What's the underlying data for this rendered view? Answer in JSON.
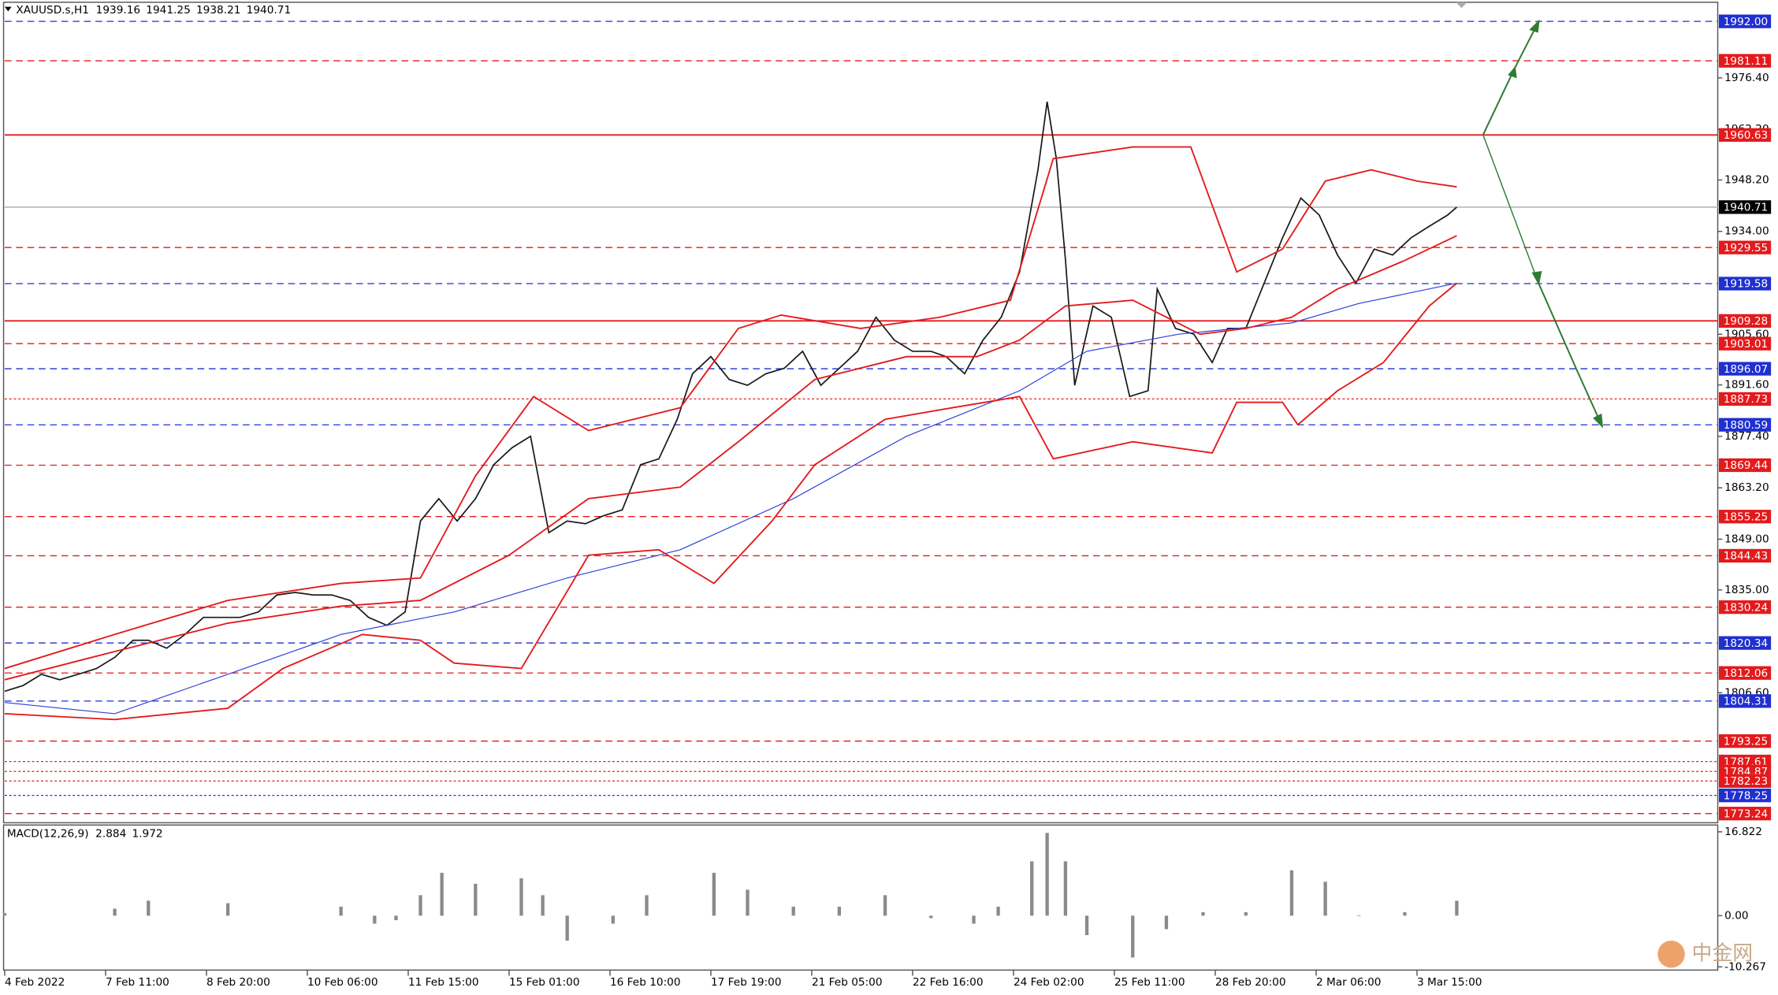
{
  "chart_data": [
    {
      "type": "line",
      "title": "XAUUSD.s,H1",
      "ohlc": [
        1939.16,
        1941.25,
        1938.21,
        1940.71
      ],
      "xlim": [
        0,
        560
      ],
      "xticks": [
        {
          "value": 0,
          "label": "4 Feb 2022"
        },
        {
          "value": 33,
          "label": "7 Feb 11:00"
        },
        {
          "value": 66,
          "label": "8 Feb 20:00"
        },
        {
          "value": 99,
          "label": "10 Feb 06:00"
        },
        {
          "value": 132,
          "label": "11 Feb 15:00"
        },
        {
          "value": 165,
          "label": "15 Feb 01:00"
        },
        {
          "value": 198,
          "label": "16 Feb 10:00"
        },
        {
          "value": 231,
          "label": "17 Feb 19:00"
        },
        {
          "value": 264,
          "label": "21 Feb 05:00"
        },
        {
          "value": 297,
          "label": "22 Feb 16:00"
        },
        {
          "value": 330,
          "label": "24 Feb 02:00"
        },
        {
          "value": 363,
          "label": "25 Feb 11:00"
        },
        {
          "value": 396,
          "label": "28 Feb 20:00"
        },
        {
          "value": 429,
          "label": "2 Mar 06:00"
        },
        {
          "value": 462,
          "label": "3 Mar 15:00"
        }
      ],
      "ylim": [
        1770.7,
        1997.9
      ],
      "yticks": [
        {
          "value": 1976.4,
          "label": "1976.40"
        },
        {
          "value": 1962.2,
          "label": "1962.20"
        },
        {
          "value": 1948.2,
          "label": "1948.20"
        },
        {
          "value": 1934,
          "label": "1934.00"
        },
        {
          "value": 1905.6,
          "label": "1905.60"
        },
        {
          "value": 1891.6,
          "label": "1891.60"
        },
        {
          "value": 1877.4,
          "label": "1877.40"
        },
        {
          "value": 1863.2,
          "label": "1863.20"
        },
        {
          "value": 1849,
          "label": "1849.00"
        },
        {
          "value": 1835,
          "label": "1835.00"
        },
        {
          "value": 1806.6,
          "label": "1806.60"
        }
      ],
      "levels": [
        {
          "value": 1992,
          "label": "1992.00",
          "color": "#1f2fd0",
          "line_color": "#1f2fd0",
          "style": "dash"
        },
        {
          "value": 1981.11,
          "label": "1981.11",
          "color": "#e31a1c",
          "line_color": "#e31a1c",
          "style": "dash"
        },
        {
          "value": 1960.63,
          "label": "1960.63",
          "color": "#e31a1c",
          "line_color": "#e31a1c",
          "style": "solid"
        },
        {
          "value": 1940.71,
          "label": "1940.71",
          "color": "#000000",
          "line_color": "#c0c0c0",
          "style": "solid"
        },
        {
          "value": 1929.55,
          "label": "1929.55",
          "color": "#e31a1c",
          "line_color": "#e31a1c",
          "style": "dash"
        },
        {
          "value": 1919.58,
          "label": "1919.58",
          "color": "#1f2fd0",
          "line_color": "#1f2fd0",
          "style": "dash"
        },
        {
          "value": 1909.28,
          "label": "1909.28",
          "color": "#e31a1c",
          "line_color": "#e31a1c",
          "style": "solid"
        },
        {
          "value": 1903.01,
          "label": "1903.01",
          "color": "#e31a1c",
          "line_color": "#e31a1c",
          "style": "dash"
        },
        {
          "value": 1896.07,
          "label": "1896.07",
          "color": "#1f2fd0",
          "line_color": "#1f2fd0",
          "style": "dash"
        },
        {
          "value": 1887.73,
          "label": "1887.73",
          "color": "#e31a1c",
          "line_color": "#e31a1c",
          "style": "dot"
        },
        {
          "value": 1880.59,
          "label": "1880.59",
          "color": "#1f2fd0",
          "line_color": "#1f2fd0",
          "style": "dash"
        },
        {
          "value": 1869.44,
          "label": "1869.44",
          "color": "#e31a1c",
          "line_color": "#e31a1c",
          "style": "dash"
        },
        {
          "value": 1855.25,
          "label": "1855.25",
          "color": "#e31a1c",
          "line_color": "#e31a1c",
          "style": "dash"
        },
        {
          "value": 1844.43,
          "label": "1844.43",
          "color": "#e31a1c",
          "line_color": "#e31a1c",
          "style": "dash"
        },
        {
          "value": 1830.24,
          "label": "1830.24",
          "color": "#e31a1c",
          "line_color": "#e31a1c",
          "style": "dash"
        },
        {
          "value": 1820.34,
          "label": "1820.34",
          "color": "#1f2fd0",
          "line_color": "#1f2fd0",
          "style": "dash"
        },
        {
          "value": 1812.06,
          "label": "1812.06",
          "color": "#e31a1c",
          "line_color": "#e31a1c",
          "style": "dash"
        },
        {
          "value": 1804.31,
          "label": "1804.31",
          "color": "#1f2fd0",
          "line_color": "#1f2fd0",
          "style": "dash"
        },
        {
          "value": 1793.25,
          "label": "1793.25",
          "color": "#e31a1c",
          "line_color": "#e31a1c",
          "style": "dash"
        },
        {
          "value": 1787.61,
          "label": "1787.61",
          "color": "#e31a1c",
          "line_color": "#e31a1c",
          "style": "dot"
        },
        {
          "value": 1784.87,
          "label": "1784.87",
          "color": "#e31a1c",
          "line_color": "#e31a1c",
          "style": "dot"
        },
        {
          "value": 1782.23,
          "label": "1782.23",
          "color": "#e31a1c",
          "line_color": "#e31a1c",
          "style": "dot"
        },
        {
          "value": 1778.25,
          "label": "1778.25",
          "color": "#1f2fd0",
          "line_color": "#1f2fd0",
          "style": "dot"
        },
        {
          "value": 1773.24,
          "label": "1773.24",
          "color": "#e31a1c",
          "line_color": "#e31a1c",
          "style": "dash"
        }
      ],
      "series": [
        {
          "color": "#1a1a1a",
          "width": 1.2,
          "x": [
            0,
            6,
            12,
            18,
            24,
            30,
            36,
            42,
            47,
            53,
            59,
            65,
            71,
            77,
            83,
            89,
            95,
            101,
            107,
            113,
            119,
            125,
            131,
            136,
            142,
            148,
            154,
            160,
            166,
            172,
            178,
            184,
            190,
            196,
            202,
            208,
            214,
            220,
            225,
            231,
            237,
            243,
            249,
            255,
            261,
            267,
            273,
            279,
            285,
            291,
            297,
            303,
            308,
            314,
            320,
            326,
            332,
            338,
            341,
            344,
            347,
            350,
            356,
            362,
            368,
            374,
            377,
            383,
            389,
            395,
            400,
            406,
            412,
            418,
            424,
            430,
            436,
            442,
            448,
            454,
            460,
            466,
            472,
            475
          ],
          "values": [
            1807.0,
            1808.6,
            1811.7,
            1810.2,
            1811.7,
            1813.3,
            1816.4,
            1821.1,
            1821.1,
            1818.9,
            1822.7,
            1827.4,
            1827.4,
            1827.4,
            1828.9,
            1833.6,
            1834.3,
            1833.6,
            1833.6,
            1832.1,
            1827.4,
            1825.2,
            1828.9,
            1854.0,
            1860.2,
            1854.0,
            1860.2,
            1869.6,
            1874.3,
            1877.4,
            1850.8,
            1854.0,
            1853.3,
            1855.5,
            1857.1,
            1869.6,
            1871.2,
            1882.1,
            1894.7,
            1899.4,
            1893.1,
            1891.5,
            1894.7,
            1896.2,
            1900.9,
            1891.5,
            1896.2,
            1900.9,
            1910.3,
            1904.0,
            1900.9,
            1900.9,
            1899.4,
            1894.7,
            1904.0,
            1910.3,
            1922.8,
            1951.0,
            1969.8,
            1954.1,
            1926.0,
            1891.5,
            1913.4,
            1910.3,
            1888.4,
            1890.0,
            1918.1,
            1907.2,
            1905.6,
            1897.8,
            1907.2,
            1907.2,
            1919.7,
            1932.2,
            1943.2,
            1938.5,
            1927.5,
            1919.7,
            1929.1,
            1927.5,
            1932.2,
            1935.4,
            1938.5,
            1940.7
          ]
        },
        {
          "color": "#2b3fd6",
          "width": 0.8,
          "x": [
            0,
            36,
            73,
            110,
            147,
            184,
            221,
            258,
            295,
            332,
            354,
            384,
            421,
            443,
            475
          ],
          "values": [
            1803.9,
            1800.8,
            1811.7,
            1822.7,
            1828.9,
            1838.3,
            1846.1,
            1860.2,
            1877.4,
            1890.0,
            1900.9,
            1905.6,
            1908.7,
            1914.1,
            1919.7
          ]
        },
        {
          "color": "#e31a1c",
          "width": 1.3,
          "x": [
            0,
            36,
            73,
            110,
            136,
            165,
            191,
            221,
            240,
            265,
            295,
            318,
            332,
            347,
            369,
            391,
            406,
            421,
            436,
            458,
            475
          ],
          "values": [
            1810.2,
            1818.0,
            1825.8,
            1830.5,
            1832.1,
            1844.6,
            1860.2,
            1863.4,
            1875.9,
            1893.1,
            1899.4,
            1899.4,
            1904.0,
            1913.4,
            1915.0,
            1905.6,
            1907.2,
            1910.3,
            1918.1,
            1926.0,
            1932.8
          ]
        },
        {
          "color": "#e31a1c",
          "width": 1.3,
          "x": [
            0,
            36,
            73,
            110,
            136,
            154,
            173,
            191,
            221,
            240,
            254,
            280,
            306,
            329,
            343,
            369,
            388,
            403,
            418,
            432,
            447,
            462,
            475
          ],
          "values": [
            1813.3,
            1822.7,
            1832.1,
            1836.8,
            1838.3,
            1866.5,
            1888.4,
            1879.0,
            1885.3,
            1907.2,
            1910.9,
            1907.2,
            1910.3,
            1915.0,
            1954.1,
            1957.3,
            1957.3,
            1922.8,
            1929.1,
            1947.9,
            1951.0,
            1947.9,
            1946.3
          ]
        },
        {
          "color": "#e31a1c",
          "width": 1.3,
          "x": [
            0,
            36,
            73,
            91,
            117,
            136,
            147,
            169,
            191,
            214,
            232,
            251,
            265,
            288,
            310,
            332,
            343,
            369,
            395,
            403,
            418,
            423,
            436,
            451,
            466,
            475
          ],
          "values": [
            1800.8,
            1799.2,
            1802.3,
            1813.3,
            1822.7,
            1821.1,
            1814.8,
            1813.3,
            1844.6,
            1846.1,
            1836.8,
            1854.0,
            1869.6,
            1882.1,
            1885.3,
            1888.4,
            1871.2,
            1875.9,
            1872.8,
            1886.8,
            1886.8,
            1880.6,
            1890.0,
            1897.8,
            1913.4,
            1919.7
          ]
        }
      ]
    },
    {
      "type": "bar",
      "title": "MACD(12,26,9)",
      "readings": [
        2.884,
        1.972
      ],
      "color": "#8a8a8a",
      "xlim": [
        0,
        560
      ],
      "ylim": [
        -11.14,
        18.41
      ],
      "yticks": [
        16.822,
        {
          "value": 0,
          "label": "0.00"
        },
        -10.267
      ],
      "x": [
        0,
        36,
        47,
        73,
        110,
        121,
        128,
        136,
        143,
        154,
        169,
        176,
        184,
        199,
        210,
        232,
        243,
        258,
        273,
        288,
        303,
        317,
        325,
        336,
        341,
        347,
        354,
        369,
        380,
        392,
        406,
        421,
        432,
        443,
        458,
        475
      ],
      "values": [
        0.5,
        1.4,
        3.0,
        2.5,
        1.8,
        -1.6,
        -0.9,
        4.1,
        8.6,
        6.4,
        7.5,
        4.1,
        -5.0,
        -1.6,
        4.1,
        8.6,
        5.2,
        1.8,
        1.8,
        4.1,
        -0.5,
        -1.6,
        1.8,
        10.9,
        16.6,
        10.9,
        -3.9,
        -8.4,
        -2.7,
        0.7,
        0.7,
        9.1,
        6.8,
        0,
        0.7,
        3.0
      ]
    }
  ],
  "watermark": "中金网"
}
